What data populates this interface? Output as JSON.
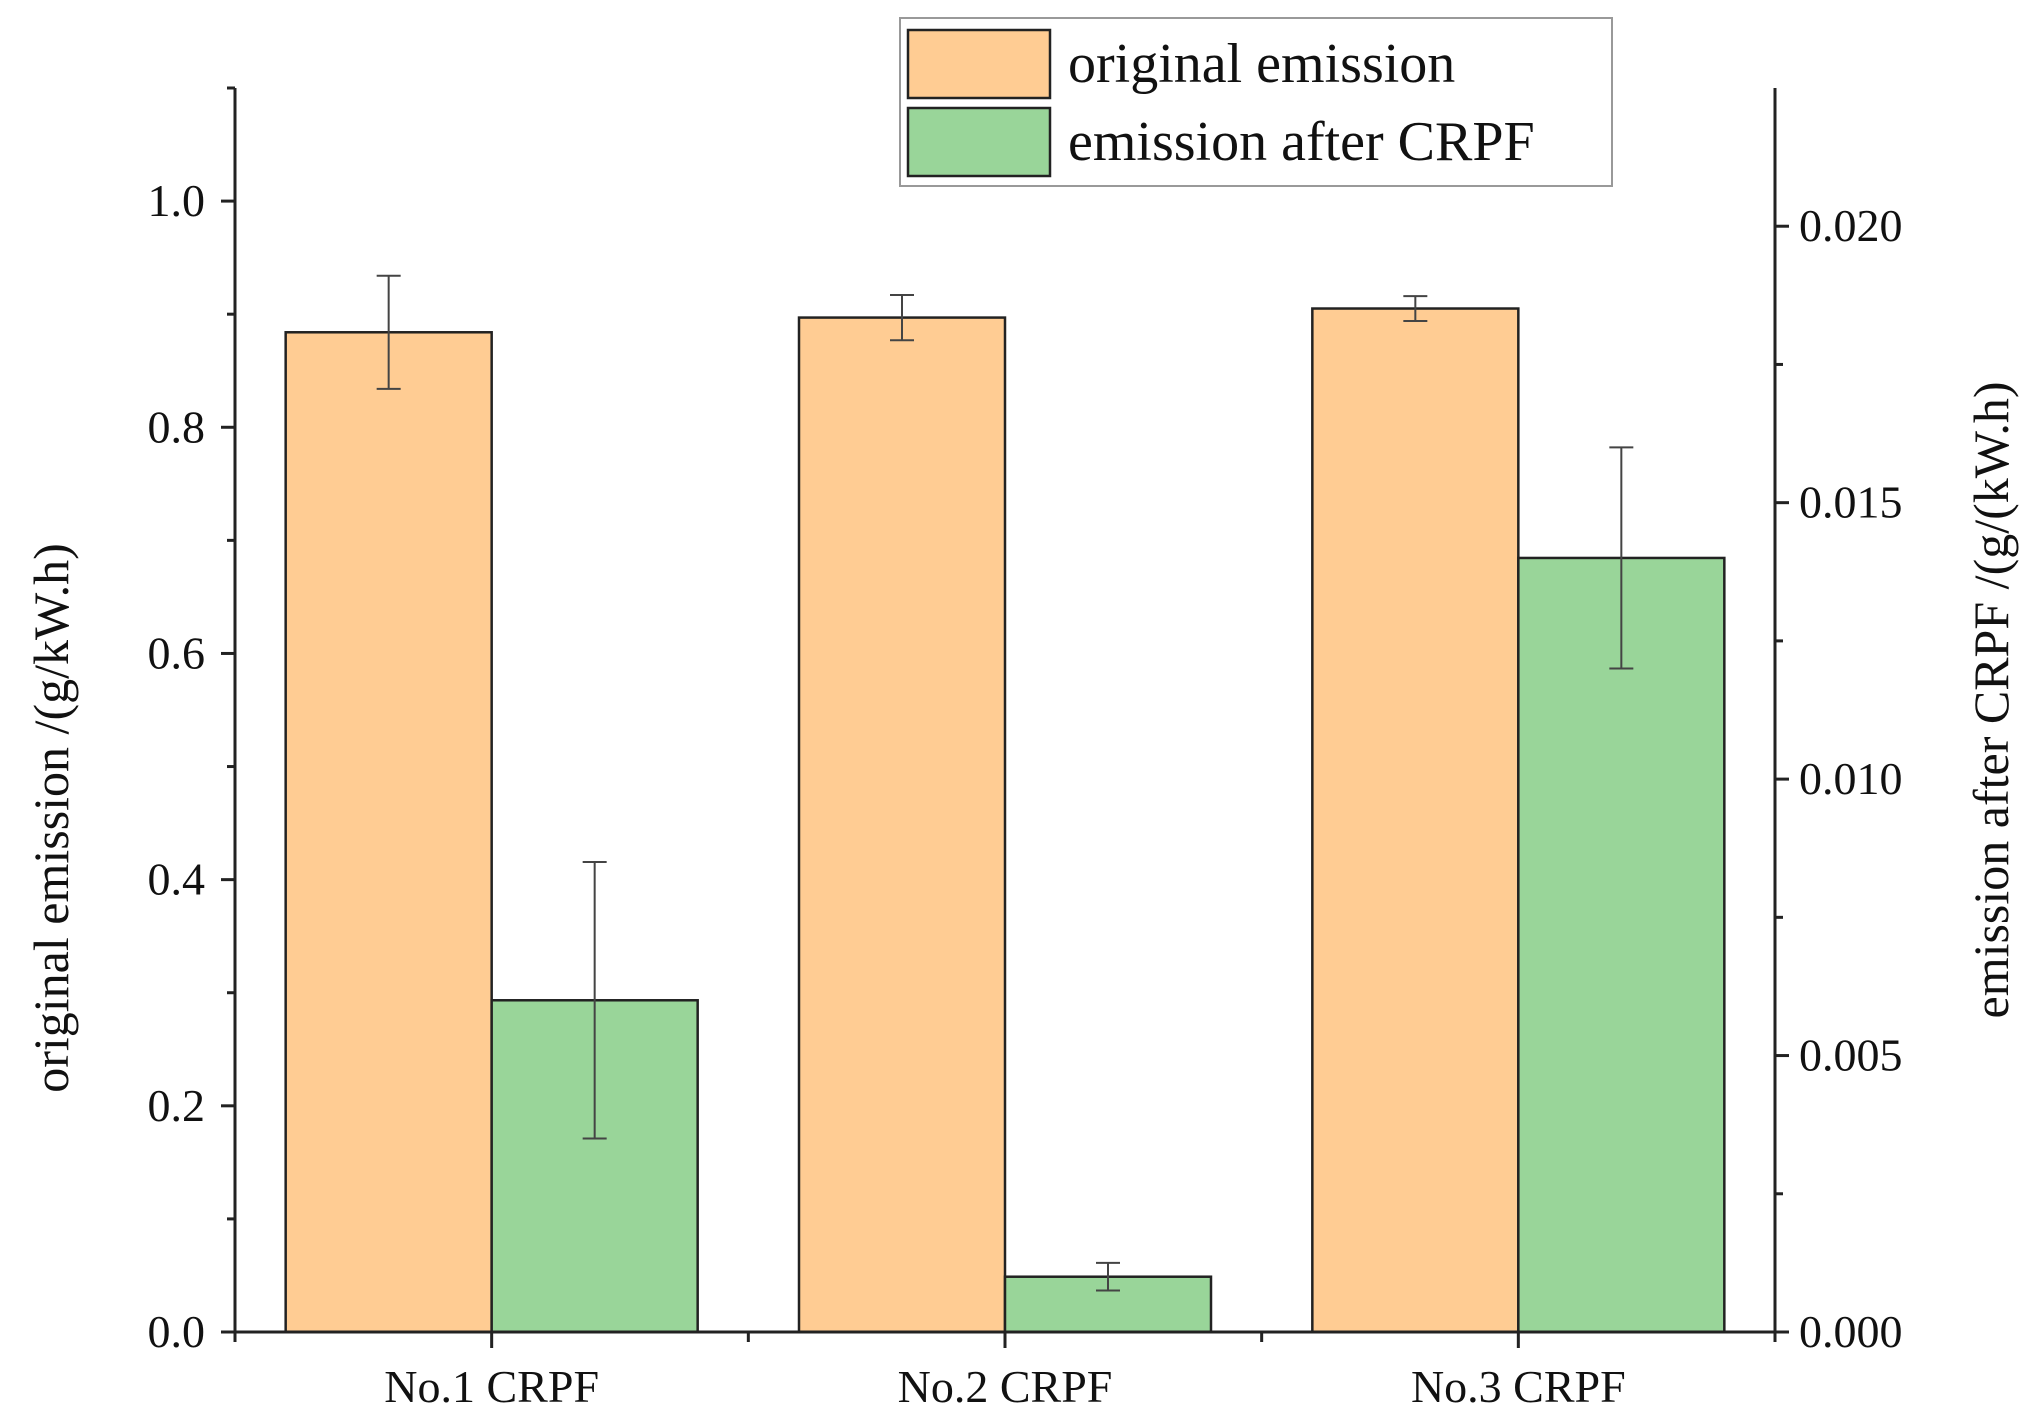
{
  "chart_data": {
    "type": "bar",
    "categories": [
      "No.1 CRPF",
      "No.2 CRPF",
      "No.3 CRPF"
    ],
    "series": [
      {
        "name": "original emission",
        "axis": "left",
        "color": "#FFCC93",
        "values": [
          0.884,
          0.897,
          0.905
        ],
        "error": [
          0.05,
          0.02,
          0.011
        ]
      },
      {
        "name": "emission after CRPF",
        "axis": "right",
        "color": "#99D599",
        "values": [
          0.006,
          0.001,
          0.014
        ],
        "error": [
          0.0025,
          0.00025,
          0.002
        ]
      }
    ],
    "ylabel": "original emission /(g/kW.h)",
    "ylabel_right": "emission after CRPF /(g/(kW.h)",
    "ylim": [
      0,
      1.1
    ],
    "ylim_right": [
      0,
      0.0225
    ],
    "yticks": [
      "0.0",
      "0.2",
      "0.4",
      "0.6",
      "0.8",
      "1.0"
    ],
    "yticks_right": [
      "0.000",
      "0.005",
      "0.010",
      "0.015",
      "0.020"
    ],
    "legend_position": "top-center",
    "grid": false
  }
}
